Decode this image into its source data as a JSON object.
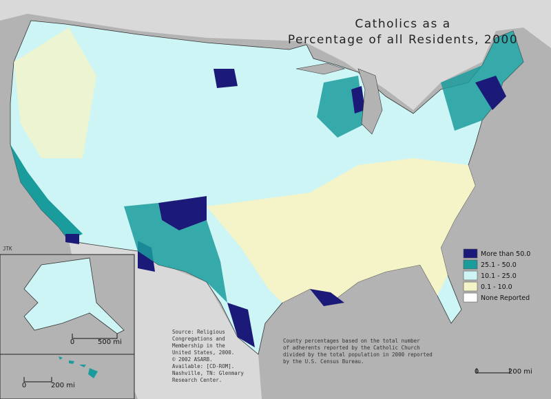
{
  "title": [
    "Catholics as a",
    "Percentage of all Residents, 2000"
  ],
  "legend": [
    {
      "label": "More than 50.0",
      "color": "#1c1a78"
    },
    {
      "label": "25.1 - 50.0",
      "color": "#1b9c9c"
    },
    {
      "label": "10.1 - 25.0",
      "color": "#cdf5f5"
    },
    {
      "label": "0.1 - 10.0",
      "color": "#f4f4c8"
    },
    {
      "label": "None Reported",
      "color": "#ffffff"
    }
  ],
  "credit": "JTK",
  "source": [
    "Source: Religious",
    "Congregations and",
    "Membership in the",
    "United States, 2000.",
    "© 2002 ASARB.",
    "Available: [CD-ROM].",
    "Nashville, TN: Glenmary",
    "Research Center."
  ],
  "note": [
    "County percentages based on the total number",
    "of adherents reported by the Catholic Church",
    "divided by the total population in 2000 reported",
    "by the U.S. Census Bureau."
  ],
  "scales": [
    {
      "zero": "0",
      "label": "500 mi"
    },
    {
      "zero": "0",
      "label": "200 mi"
    },
    {
      "zero": "0",
      "label": "200 mi"
    }
  ]
}
